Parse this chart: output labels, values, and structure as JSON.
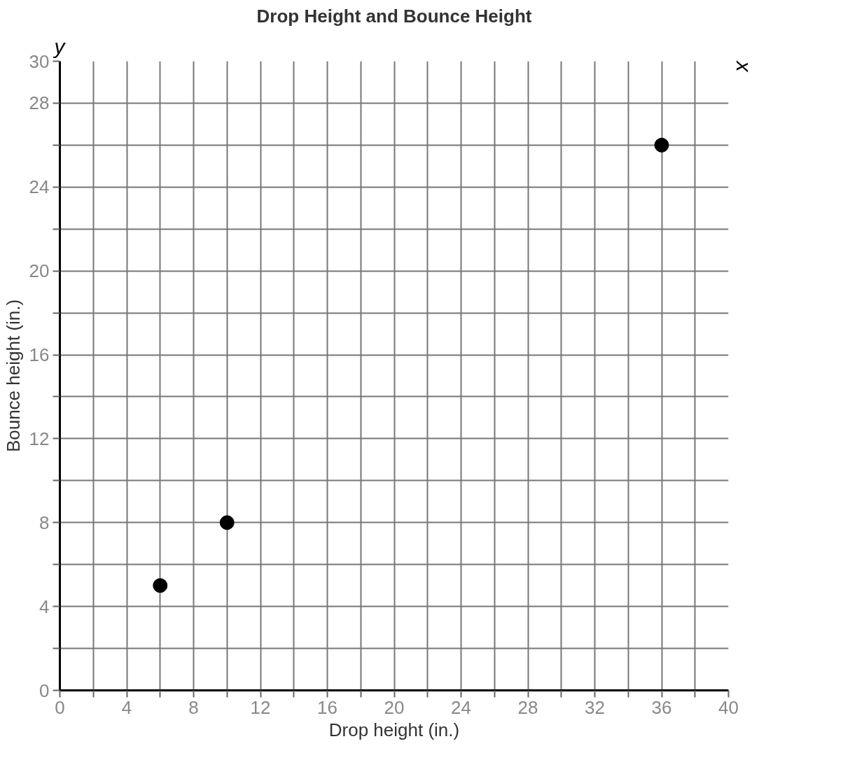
{
  "chart_data": {
    "type": "scatter",
    "title": "Drop Height and Bounce Height",
    "xlabel": "Drop height (in.)",
    "ylabel": "Bounce height (in.)",
    "annotations": [
      "x",
      "y"
    ],
    "x": [
      6,
      10,
      36
    ],
    "series": [
      {
        "color": "#000000",
        "values": [
          5,
          8,
          26
        ]
      }
    ],
    "xlim": [
      0,
      40
    ],
    "xticks": [
      0,
      {
        "value": 2,
        "label": null
      },
      4,
      {
        "value": 6,
        "label": null
      },
      8,
      {
        "value": 10,
        "label": null
      },
      12,
      {
        "value": 14,
        "label": null
      },
      16,
      {
        "value": 18,
        "label": null
      },
      20,
      {
        "value": 22,
        "label": null
      },
      24,
      {
        "value": 26,
        "label": null
      },
      28,
      {
        "value": 30,
        "label": null
      },
      32,
      {
        "value": 34,
        "label": null
      },
      36,
      {
        "value": 38,
        "label": null
      },
      40
    ],
    "ylim": [
      0,
      30
    ],
    "yticks": [
      0,
      {
        "value": 2,
        "label": null
      },
      4,
      {
        "value": 6,
        "label": null
      },
      8,
      {
        "value": 10,
        "label": null
      },
      12,
      {
        "value": 14,
        "label": null
      },
      16,
      {
        "value": 18,
        "label": null
      },
      20,
      {
        "value": 22,
        "label": null
      },
      24,
      {
        "value": 26,
        "label": null
      },
      28,
      30
    ],
    "grid": true,
    "marker": "circle"
  }
}
